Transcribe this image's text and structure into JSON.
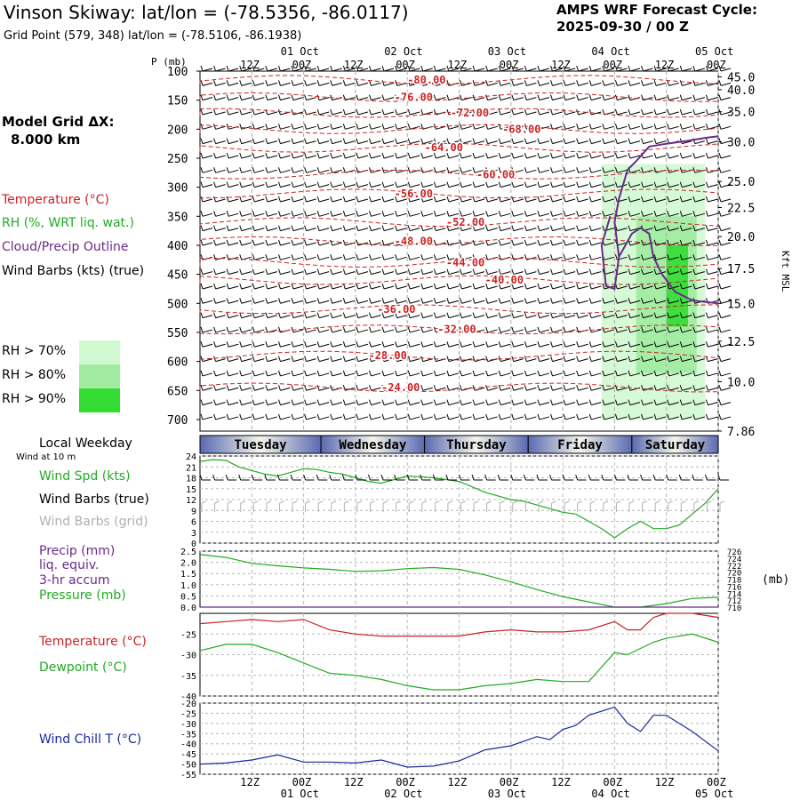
{
  "header": {
    "title": "Vinson Skiway:  lat/lon = (-78.5356, -86.0117)",
    "subtitle": "Grid Point (579, 348) lat/lon = (-78.5106, -86.1938)",
    "cycle_line1": "AMPS WRF Forecast Cycle:",
    "cycle_line2": "2025-09-30 / 00  Z"
  },
  "legend": {
    "model_grid_label": "Model Grid ΔX:",
    "model_grid_value": "8.000 km",
    "temperature": "Temperature (°C)",
    "rh": "RH (%, WRT liq. wat.)",
    "cloud": "Cloud/Precip Outline",
    "wind_barbs": "Wind Barbs (kts) (true)",
    "rh70": "RH > 70%",
    "rh80": "RH > 80%",
    "rh90": "RH > 90%",
    "rh_colors": [
      "#d2fad2",
      "#a0eba0",
      "#32dc32"
    ]
  },
  "colors": {
    "temperature": "#cc2222",
    "rh": "#22aa22",
    "cloud": "#6a2a8a",
    "wind_chill": "#1a2a9a",
    "grid_barbs": "#b0b0b0"
  },
  "chart_data": [
    {
      "type": "profile",
      "panel": "vertical-cross-section",
      "pressure_label": "P (mb)",
      "pressure_ticks": [
        100,
        150,
        200,
        250,
        300,
        350,
        400,
        450,
        500,
        550,
        600,
        650,
        700
      ],
      "ylim": [
        100,
        720
      ],
      "height_label": "Kft MSL",
      "height_ticks": [
        {
          "label": "45.0",
          "p": 110
        },
        {
          "label": "40.0",
          "p": 132
        },
        {
          "label": "35.0",
          "p": 170
        },
        {
          "label": "30.0",
          "p": 222
        },
        {
          "label": "25.0",
          "p": 290
        },
        {
          "label": "22.5",
          "p": 335
        },
        {
          "label": "20.0",
          "p": 385
        },
        {
          "label": "17.5",
          "p": 440
        },
        {
          "label": "15.0",
          "p": 500
        },
        {
          "label": "12.5",
          "p": 565
        },
        {
          "label": "10.0",
          "p": 635
        },
        {
          "label": "7.86",
          "p": 720
        }
      ],
      "time_ticks_top": [
        {
          "h": 12,
          "label": "12Z"
        },
        {
          "h": 24,
          "label": "00Z",
          "date": "01 Oct"
        },
        {
          "h": 36,
          "label": "12Z"
        },
        {
          "h": 48,
          "label": "00Z",
          "date": "02 Oct"
        },
        {
          "h": 60,
          "label": "12Z"
        },
        {
          "h": 72,
          "label": "00Z",
          "date": "03 Oct"
        },
        {
          "h": 84,
          "label": "12Z"
        },
        {
          "h": 96,
          "label": "00Z",
          "date": "04 Oct"
        },
        {
          "h": 108,
          "label": "12Z"
        },
        {
          "h": 120,
          "label": "00Z",
          "date": "05 Oct"
        }
      ],
      "xlim": [
        0,
        120
      ],
      "temperature_contours": [
        {
          "label": "-80.00",
          "h": 48,
          "p": 115
        },
        {
          "label": "-76.00",
          "h": 45,
          "p": 145
        },
        {
          "label": "-72.00",
          "h": 58,
          "p": 172
        },
        {
          "label": "-68.00",
          "h": 70,
          "p": 200
        },
        {
          "label": "-64.00",
          "h": 52,
          "p": 232
        },
        {
          "label": "-60.00",
          "h": 64,
          "p": 278
        },
        {
          "label": "-56.00",
          "h": 45,
          "p": 311
        },
        {
          "label": "-52.00",
          "h": 57,
          "p": 360
        },
        {
          "label": "-48.00",
          "h": 45,
          "p": 393
        },
        {
          "label": "-44.00",
          "h": 57,
          "p": 430
        },
        {
          "label": "-40.00",
          "h": 66,
          "p": 460
        },
        {
          "label": "-36.00",
          "h": 41,
          "p": 510
        },
        {
          "label": "-32.00",
          "h": 55,
          "p": 545
        },
        {
          "label": "-28.00",
          "h": 39,
          "p": 590
        },
        {
          "label": "-24.00",
          "h": 42,
          "p": 645
        }
      ],
      "moist_regions": [
        {
          "level": 70,
          "h0": 93,
          "h1": 117,
          "p0": 260,
          "p1": 700
        },
        {
          "level": 80,
          "h0": 101,
          "h1": 115,
          "p0": 350,
          "p1": 620
        },
        {
          "level": 90,
          "h0": 108,
          "h1": 113,
          "p0": 400,
          "p1": 540
        }
      ],
      "cloud_outline": [
        [
          95,
          350
        ],
        [
          93,
          400
        ],
        [
          94,
          470
        ],
        [
          96,
          475
        ],
        [
          97,
          420
        ],
        [
          96,
          360
        ],
        [
          97,
          320
        ],
        [
          99,
          270
        ],
        [
          101,
          255
        ],
        [
          104,
          230
        ],
        [
          108,
          225
        ],
        [
          113,
          220
        ],
        [
          117,
          215
        ],
        [
          120,
          212
        ]
      ],
      "cloud_outline_2": [
        [
          97,
          420
        ],
        [
          100,
          380
        ],
        [
          102,
          370
        ],
        [
          104,
          380
        ],
        [
          105,
          420
        ],
        [
          107,
          450
        ],
        [
          110,
          480
        ],
        [
          114,
          495
        ],
        [
          120,
          500
        ]
      ]
    },
    {
      "type": "bar",
      "panel": "weekday-bar",
      "label": "Local Weekday",
      "days": [
        {
          "name": "Tuesday",
          "h0": 0,
          "h1": 28
        },
        {
          "name": "Wednesday",
          "h0": 28,
          "h1": 52
        },
        {
          "name": "Thursday",
          "h0": 52,
          "h1": 76
        },
        {
          "name": "Friday",
          "h0": 76,
          "h1": 100
        },
        {
          "name": "Saturday",
          "h0": 100,
          "h1": 120
        }
      ]
    },
    {
      "type": "line",
      "panel": "wind",
      "caption": "Wind at 10 m",
      "label_speed": "Wind Spd (kts)",
      "label_true": "Wind Barbs (true)",
      "label_grid": "Wind Barbs (grid)",
      "yticks": [
        0,
        3,
        6,
        9,
        12,
        15,
        18,
        21,
        24
      ],
      "ylim": [
        0,
        24
      ],
      "x": [
        0,
        3,
        6,
        9,
        12,
        15,
        18,
        21,
        24,
        27,
        30,
        33,
        36,
        39,
        42,
        45,
        48,
        51,
        54,
        57,
        60,
        63,
        66,
        69,
        72,
        75,
        78,
        81,
        84,
        87,
        90,
        93,
        96,
        99,
        102,
        105,
        108,
        111,
        114,
        117,
        120
      ],
      "speed": [
        22.5,
        23,
        22.8,
        21,
        20,
        19,
        18.5,
        19.5,
        20.5,
        20.3,
        19.5,
        19,
        18,
        17,
        16.5,
        17.5,
        18.5,
        18.3,
        18,
        17.5,
        17,
        15.5,
        14,
        13,
        12,
        11.5,
        10.5,
        9.5,
        8.5,
        8,
        6,
        4,
        1.5,
        4,
        6,
        4,
        4,
        5,
        8,
        11,
        15
      ]
    },
    {
      "type": "line",
      "panel": "precip-pressure",
      "label_precip": "Precip (mm)",
      "label_liq": "liq. equiv.",
      "label_accum": "3-hr accum",
      "label_pressure": "Pressure (mb)",
      "unit_right": "(mb)",
      "yticks_left": [
        0.0,
        0.5,
        1.0,
        1.5,
        2.0,
        2.5
      ],
      "yticks_left_labels": [
        "0.0",
        "0.5",
        "1.0",
        "1.5",
        "2.0",
        "2.5"
      ],
      "ylim_left": [
        0,
        2.5
      ],
      "yticks_right": [
        710,
        712,
        714,
        716,
        718,
        720,
        722,
        724,
        726
      ],
      "ylim_right": [
        710,
        726
      ],
      "x": [
        0,
        6,
        12,
        18,
        24,
        30,
        36,
        42,
        48,
        54,
        60,
        66,
        72,
        78,
        84,
        90,
        96,
        102,
        108,
        114,
        120
      ],
      "pressure": [
        725,
        724.2,
        722.5,
        721.8,
        721.2,
        720.8,
        720.2,
        720.4,
        721,
        721.3,
        720.8,
        719.2,
        717.2,
        715,
        713,
        711.5,
        710,
        710,
        711,
        712.5,
        712.8
      ],
      "precip": [
        0,
        0,
        0,
        0,
        0,
        0,
        0,
        0,
        0,
        0,
        0,
        0,
        0,
        0,
        0,
        0,
        0,
        0,
        0,
        0,
        0
      ]
    },
    {
      "type": "line",
      "panel": "temperature-dewpoint",
      "label_temp": "Temperature (°C)",
      "label_dew": "Dewpoint (°C)",
      "yticks": [
        -40,
        -35,
        -30,
        -25
      ],
      "ylim": [
        -40,
        -20
      ],
      "x": [
        0,
        6,
        12,
        18,
        24,
        30,
        36,
        42,
        48,
        54,
        60,
        66,
        72,
        78,
        84,
        90,
        96,
        99,
        102,
        105,
        108,
        114,
        120
      ],
      "temperature": [
        -22.5,
        -22,
        -21.5,
        -22,
        -21.5,
        -24,
        -25,
        -25.5,
        -25.5,
        -25.5,
        -25.5,
        -24.5,
        -24,
        -24.5,
        -24.5,
        -24,
        -22,
        -24,
        -24,
        -21,
        -20,
        -20,
        -21
      ],
      "dewpoint": [
        -29,
        -27.5,
        -27.5,
        -29.5,
        -32,
        -34.5,
        -35,
        -36,
        -37.5,
        -38.5,
        -38.5,
        -37.5,
        -37,
        -36,
        -36.5,
        -36.5,
        -29.5,
        -30,
        -28.5,
        -27,
        -26,
        -25,
        -27
      ]
    },
    {
      "type": "line",
      "panel": "wind-chill",
      "label": "Wind Chill T (°C)",
      "yticks": [
        -55,
        -50,
        -45,
        -40,
        -35,
        -30,
        -25,
        -20
      ],
      "ylim": [
        -55,
        -20
      ],
      "x": [
        0,
        6,
        12,
        18,
        24,
        30,
        36,
        42,
        48,
        54,
        60,
        66,
        72,
        78,
        81,
        84,
        87,
        90,
        93,
        96,
        99,
        102,
        105,
        108,
        114,
        120
      ],
      "wind_chill": [
        -50,
        -49.5,
        -48,
        -45.5,
        -49,
        -49,
        -49.5,
        -48,
        -51.5,
        -51,
        -48.5,
        -43,
        -41,
        -36.5,
        -38,
        -33,
        -31,
        -26,
        -24,
        -22,
        -30,
        -34,
        -26,
        -26,
        -34,
        -43.5
      ]
    }
  ],
  "bottom_axis": {
    "ticks": [
      {
        "h": 12,
        "label": "12Z"
      },
      {
        "h": 24,
        "label": "00Z",
        "date": "01 Oct"
      },
      {
        "h": 36,
        "label": "12Z"
      },
      {
        "h": 48,
        "label": "00Z",
        "date": "02 Oct"
      },
      {
        "h": 60,
        "label": "12Z"
      },
      {
        "h": 72,
        "label": "00Z",
        "date": "03 Oct"
      },
      {
        "h": 84,
        "label": "12Z"
      },
      {
        "h": 96,
        "label": "00Z",
        "date": "04 Oct"
      },
      {
        "h": 108,
        "label": "12Z"
      },
      {
        "h": 120,
        "label": "00Z",
        "date": "05 Oct"
      }
    ]
  }
}
